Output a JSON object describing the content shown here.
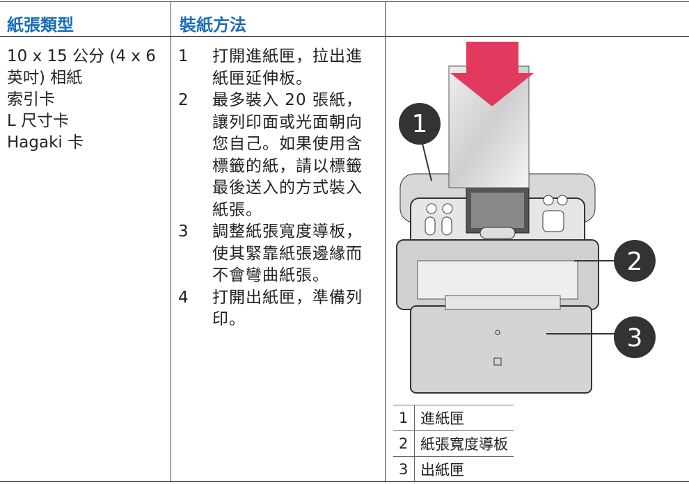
{
  "table": {
    "headers": [
      "紙張類型",
      "裝紙方法"
    ],
    "paper_types": [
      "10 x 15 公分 (4 x 6 英吋) 相紙",
      "索引卡",
      "L 尺寸卡",
      "Hagaki 卡"
    ],
    "steps": [
      {
        "number": "1",
        "text": "打開進紙匣，拉出進紙匣延伸板。"
      },
      {
        "number": "2",
        "text": "最多裝入 20 張紙，讓列印面或光面朝向您自己。如果使用含標籤的紙，請以標籤最後送入的方式裝入紙張。"
      },
      {
        "number": "3",
        "text": "調整紙張寬度導板，使其緊靠紙張邊緣而不會彎曲紙張。"
      },
      {
        "number": "4",
        "text": "打開出紙匣，準備列印。"
      }
    ]
  },
  "figure": {
    "callouts": [
      "1",
      "2",
      "3"
    ],
    "legend": [
      {
        "number": "1",
        "label": "進紙匣"
      },
      {
        "number": "2",
        "label": "紙張寬度導板"
      },
      {
        "number": "3",
        "label": "出紙匣"
      }
    ]
  }
}
